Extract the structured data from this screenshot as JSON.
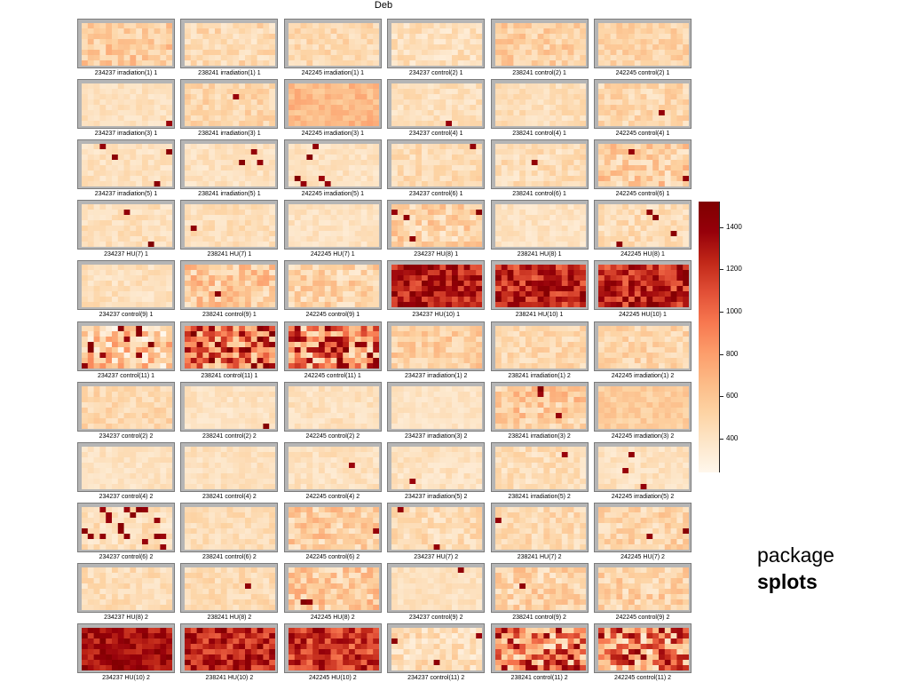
{
  "title": "Deb",
  "package_label": "package",
  "package_name": "splots",
  "legend": {
    "ticks": [
      400,
      600,
      800,
      1000,
      1200,
      1400
    ],
    "range": [
      240,
      1520
    ],
    "colors": [
      "#fff7ec",
      "#fde6c9",
      "#fdd3a3",
      "#fcba86",
      "#fc9c6a",
      "#f7774f",
      "#e14f36",
      "#c02718",
      "#96000a",
      "#7f0000"
    ]
  },
  "chart_data": {
    "type": "heatmap",
    "title": "Deb",
    "grid": {
      "rows": 8,
      "cols": 15
    },
    "value_range": [
      240,
      1520
    ],
    "panels": [
      {
        "label": "234237 irradiation(1) 1",
        "level": 560,
        "spread": 170,
        "hotspots": 0
      },
      {
        "label": "238241 irradiation(1) 1",
        "level": 470,
        "spread": 130,
        "hotspots": 0
      },
      {
        "label": "242245 irradiation(1) 1",
        "level": 480,
        "spread": 110,
        "hotspots": 0
      },
      {
        "label": "234237 control(2) 1",
        "level": 430,
        "spread": 110,
        "hotspots": 0
      },
      {
        "label": "238241 control(2) 1",
        "level": 540,
        "spread": 150,
        "hotspots": 0
      },
      {
        "label": "242245 control(2) 1",
        "level": 510,
        "spread": 120,
        "hotspots": 0
      },
      {
        "label": "234237 irradiation(3) 1",
        "level": 420,
        "spread": 70,
        "hotspots": 1
      },
      {
        "label": "238241 irradiation(3) 1",
        "level": 490,
        "spread": 120,
        "hotspots": 1
      },
      {
        "label": "242245 irradiation(3) 1",
        "level": 660,
        "spread": 110,
        "hotspots": 0
      },
      {
        "label": "234237 control(4) 1",
        "level": 430,
        "spread": 90,
        "hotspots": 1
      },
      {
        "label": "238241 control(4) 1",
        "level": 440,
        "spread": 90,
        "hotspots": 0
      },
      {
        "label": "242245 control(4) 1",
        "level": 490,
        "spread": 130,
        "hotspots": 1
      },
      {
        "label": "234237 irradiation(5) 1",
        "level": 420,
        "spread": 80,
        "hotspots": 4
      },
      {
        "label": "238241 irradiation(5) 1",
        "level": 420,
        "spread": 80,
        "hotspots": 3
      },
      {
        "label": "242245 irradiation(5) 1",
        "level": 420,
        "spread": 80,
        "hotspots": 8
      },
      {
        "label": "234237 control(6) 1",
        "level": 460,
        "spread": 110,
        "hotspots": 1
      },
      {
        "label": "238241 control(6) 1",
        "level": 450,
        "spread": 110,
        "hotspots": 1
      },
      {
        "label": "242245 control(6) 1",
        "level": 540,
        "spread": 200,
        "hotspots": 2
      },
      {
        "label": "234237 HU(7) 1",
        "level": 430,
        "spread": 90,
        "hotspots": 2
      },
      {
        "label": "238241 HU(7) 1",
        "level": 440,
        "spread": 90,
        "hotspots": 1
      },
      {
        "label": "242245 HU(7) 1",
        "level": 410,
        "spread": 70,
        "hotspots": 0
      },
      {
        "label": "234237 HU(8) 1",
        "level": 510,
        "spread": 180,
        "hotspots": 4
      },
      {
        "label": "238241 HU(8) 1",
        "level": 410,
        "spread": 70,
        "hotspots": 0
      },
      {
        "label": "242245 HU(8) 1",
        "level": 460,
        "spread": 110,
        "hotspots": 4
      },
      {
        "label": "234237 control(9) 1",
        "level": 430,
        "spread": 90,
        "hotspots": 0
      },
      {
        "label": "238241 control(9) 1",
        "level": 570,
        "spread": 210,
        "hotspots": 1
      },
      {
        "label": "242245 control(9) 1",
        "level": 510,
        "spread": 170,
        "hotspots": 0
      },
      {
        "label": "234237 HU(10) 1",
        "level": 1270,
        "spread": 220,
        "hotspots": 0
      },
      {
        "label": "238241 HU(10) 1",
        "level": 1240,
        "spread": 250,
        "hotspots": 0
      },
      {
        "label": "242245 HU(10) 1",
        "level": 1230,
        "spread": 260,
        "hotspots": 0
      },
      {
        "label": "234237 control(11) 1",
        "level": 560,
        "spread": 320,
        "hotspots": 10
      },
      {
        "label": "238241 control(11) 1",
        "level": 1000,
        "spread": 550,
        "hotspots": 0
      },
      {
        "label": "242245 control(11) 1",
        "level": 950,
        "spread": 580,
        "hotspots": 0
      },
      {
        "label": "234237 irradiation(1) 2",
        "level": 540,
        "spread": 150,
        "hotspots": 0
      },
      {
        "label": "238241 irradiation(1) 2",
        "level": 480,
        "spread": 120,
        "hotspots": 0
      },
      {
        "label": "242245 irradiation(1) 2",
        "level": 500,
        "spread": 130,
        "hotspots": 0
      },
      {
        "label": "234237 control(2) 2",
        "level": 490,
        "spread": 110,
        "hotspots": 0
      },
      {
        "label": "238241 control(2) 2",
        "level": 410,
        "spread": 70,
        "hotspots": 1
      },
      {
        "label": "242245 control(2) 2",
        "level": 420,
        "spread": 80,
        "hotspots": 0
      },
      {
        "label": "234237 irradiation(3) 2",
        "level": 400,
        "spread": 60,
        "hotspots": 0
      },
      {
        "label": "238241 irradiation(3) 2",
        "level": 560,
        "spread": 190,
        "hotspots": 3
      },
      {
        "label": "242245 irradiation(3) 2",
        "level": 560,
        "spread": 90,
        "hotspots": 0
      },
      {
        "label": "234237 control(4) 2",
        "level": 410,
        "spread": 70,
        "hotspots": 0
      },
      {
        "label": "238241 control(4) 2",
        "level": 420,
        "spread": 70,
        "hotspots": 0
      },
      {
        "label": "242245 control(4) 2",
        "level": 420,
        "spread": 80,
        "hotspots": 1
      },
      {
        "label": "234237 irradiation(5) 2",
        "level": 410,
        "spread": 80,
        "hotspots": 1
      },
      {
        "label": "238241 irradiation(5) 2",
        "level": 450,
        "spread": 110,
        "hotspots": 1
      },
      {
        "label": "242245 irradiation(5) 2",
        "level": 420,
        "spread": 80,
        "hotspots": 3
      },
      {
        "label": "234237 control(6) 2",
        "level": 440,
        "spread": 110,
        "hotspots": 18
      },
      {
        "label": "238241 control(6) 2",
        "level": 450,
        "spread": 90,
        "hotspots": 0
      },
      {
        "label": "242245 control(6) 2",
        "level": 540,
        "spread": 190,
        "hotspots": 1
      },
      {
        "label": "234237 HU(7) 2",
        "level": 460,
        "spread": 120,
        "hotspots": 2
      },
      {
        "label": "238241 HU(7) 2",
        "level": 470,
        "spread": 120,
        "hotspots": 1
      },
      {
        "label": "242245 HU(7) 2",
        "level": 500,
        "spread": 150,
        "hotspots": 2
      },
      {
        "label": "234237 HU(8) 2",
        "level": 450,
        "spread": 100,
        "hotspots": 0
      },
      {
        "label": "238241 HU(8) 2",
        "level": 460,
        "spread": 100,
        "hotspots": 1
      },
      {
        "label": "242245 HU(8) 2",
        "level": 560,
        "spread": 210,
        "hotspots": 2
      },
      {
        "label": "234237 control(9) 2",
        "level": 420,
        "spread": 70,
        "hotspots": 1
      },
      {
        "label": "238241 control(9) 2",
        "level": 510,
        "spread": 170,
        "hotspots": 1
      },
      {
        "label": "242245 control(9) 2",
        "level": 520,
        "spread": 170,
        "hotspots": 0
      },
      {
        "label": "234237 HU(10) 2",
        "level": 1330,
        "spread": 170,
        "hotspots": 0
      },
      {
        "label": "238241 HU(10) 2",
        "level": 1250,
        "spread": 230,
        "hotspots": 0
      },
      {
        "label": "242245 HU(10) 2",
        "level": 1180,
        "spread": 260,
        "hotspots": 0
      },
      {
        "label": "234237 control(11) 2",
        "level": 450,
        "spread": 150,
        "hotspots": 3
      },
      {
        "label": "238241 control(11) 2",
        "level": 900,
        "spread": 560,
        "hotspots": 0
      },
      {
        "label": "242245 control(11) 2",
        "level": 880,
        "spread": 560,
        "hotspots": 0
      }
    ]
  }
}
